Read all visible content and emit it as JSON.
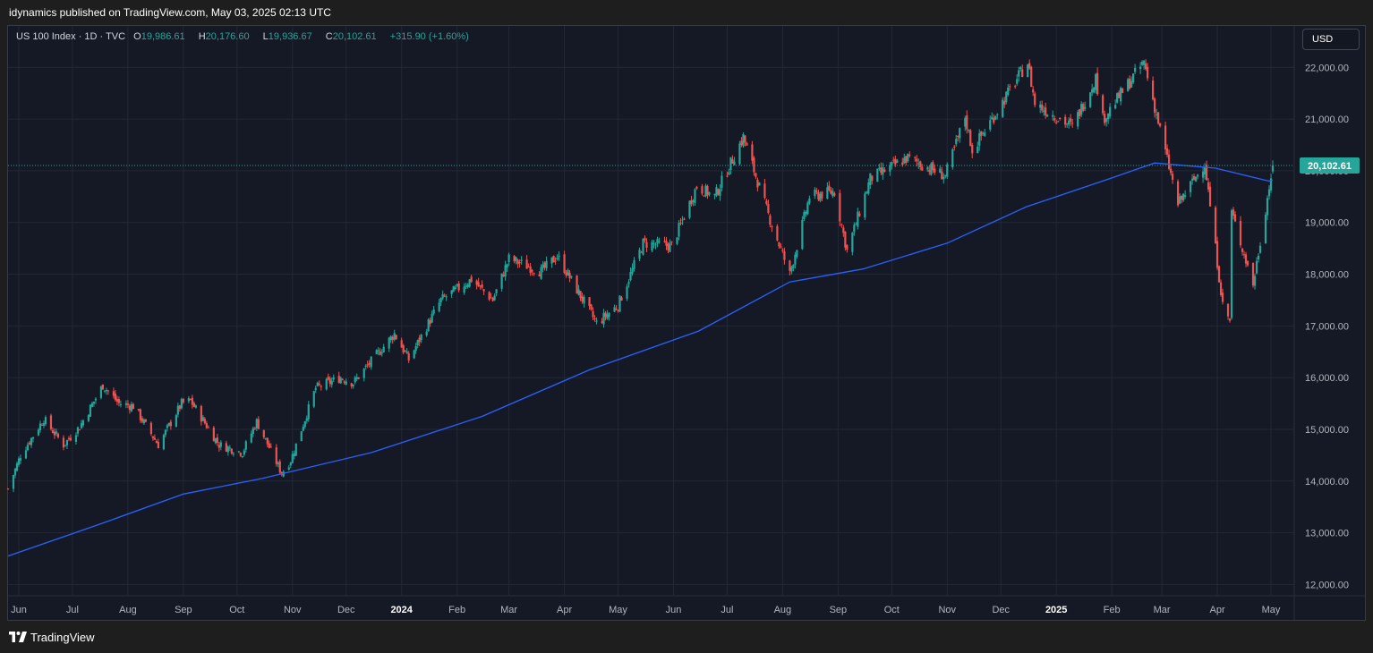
{
  "header": {
    "published_line": "idynamics published on TradingView.com, May 03, 2025 02:13 UTC"
  },
  "legend": {
    "symbol": "US 100 Index · 1D · TVC",
    "open_key": "O",
    "open": "19,986.61",
    "high_key": "H",
    "high": "20,176.60",
    "low_key": "L",
    "low": "19,936.67",
    "close_key": "C",
    "close": "20,102.61",
    "change": "+315.90 (+1.60%)"
  },
  "currency_button": {
    "label": "USD"
  },
  "footer": {
    "brand": "TradingView"
  },
  "colors": {
    "background": "#151925",
    "grid": "#232836",
    "up": "#26a69a",
    "down": "#ef5350",
    "moving_average": "#2962ff",
    "price_label_bg": "#26a69a",
    "axis_text": "#b2b5be"
  },
  "chart_data": {
    "type": "candlestick",
    "symbol": "US 100 Index",
    "interval": "1D",
    "last_price": 20102.61,
    "last_price_label": "20,102.61",
    "y_ticks": [
      "12,000.00",
      "13,000.00",
      "14,000.00",
      "15,000.00",
      "16,000.00",
      "17,000.00",
      "18,000.00",
      "19,000.00",
      "20,000.00",
      "21,000.00",
      "22,000.00"
    ],
    "ylim": [
      11800,
      22800
    ],
    "xlim": [
      "2023-05-26",
      "2025-05-14"
    ],
    "x_ticks": [
      {
        "label": "Jun",
        "date": "2023-06-01",
        "bold": false
      },
      {
        "label": "Jul",
        "date": "2023-07-01",
        "bold": false
      },
      {
        "label": "Aug",
        "date": "2023-08-01",
        "bold": false
      },
      {
        "label": "Sep",
        "date": "2023-09-01",
        "bold": false
      },
      {
        "label": "Oct",
        "date": "2023-10-01",
        "bold": false
      },
      {
        "label": "Nov",
        "date": "2023-11-01",
        "bold": false
      },
      {
        "label": "Dec",
        "date": "2023-12-01",
        "bold": false
      },
      {
        "label": "2024",
        "date": "2024-01-01",
        "bold": true
      },
      {
        "label": "Feb",
        "date": "2024-02-01",
        "bold": false
      },
      {
        "label": "Mar",
        "date": "2024-03-01",
        "bold": false
      },
      {
        "label": "Apr",
        "date": "2024-04-01",
        "bold": false
      },
      {
        "label": "May",
        "date": "2024-05-01",
        "bold": false
      },
      {
        "label": "Jun",
        "date": "2024-06-01",
        "bold": false
      },
      {
        "label": "Jul",
        "date": "2024-07-01",
        "bold": false
      },
      {
        "label": "Aug",
        "date": "2024-08-01",
        "bold": false
      },
      {
        "label": "Sep",
        "date": "2024-09-01",
        "bold": false
      },
      {
        "label": "Oct",
        "date": "2024-10-01",
        "bold": false
      },
      {
        "label": "Nov",
        "date": "2024-11-01",
        "bold": false
      },
      {
        "label": "Dec",
        "date": "2024-12-01",
        "bold": false
      },
      {
        "label": "2025",
        "date": "2025-01-01",
        "bold": true
      },
      {
        "label": "Feb",
        "date": "2025-02-01",
        "bold": false
      },
      {
        "label": "Mar",
        "date": "2025-03-01",
        "bold": false
      },
      {
        "label": "Apr",
        "date": "2025-04-01",
        "bold": false
      },
      {
        "label": "May",
        "date": "2025-05-01",
        "bold": false
      }
    ],
    "price_path": [
      [
        "2023-05-26",
        13850
      ],
      [
        "2023-06-02",
        14500
      ],
      [
        "2023-06-15",
        15200
      ],
      [
        "2023-06-26",
        14700
      ],
      [
        "2023-07-05",
        15050
      ],
      [
        "2023-07-18",
        15850
      ],
      [
        "2023-07-27",
        15500
      ],
      [
        "2023-08-04",
        15450
      ],
      [
        "2023-08-18",
        14700
      ],
      [
        "2023-08-31",
        15500
      ],
      [
        "2023-09-05",
        15550
      ],
      [
        "2023-09-21",
        14700
      ],
      [
        "2023-10-04",
        14550
      ],
      [
        "2023-10-12",
        15150
      ],
      [
        "2023-10-26",
        14150
      ],
      [
        "2023-10-31",
        14400
      ],
      [
        "2023-11-14",
        15800
      ],
      [
        "2023-11-28",
        16000
      ],
      [
        "2023-12-05",
        15900
      ],
      [
        "2023-12-28",
        16850
      ],
      [
        "2024-01-05",
        16350
      ],
      [
        "2024-01-23",
        17500
      ],
      [
        "2024-02-09",
        17900
      ],
      [
        "2024-02-21",
        17500
      ],
      [
        "2024-03-01",
        18300
      ],
      [
        "2024-03-19",
        18050
      ],
      [
        "2024-03-28",
        18350
      ],
      [
        "2024-04-19",
        17050
      ],
      [
        "2024-05-01",
        17400
      ],
      [
        "2024-05-15",
        18600
      ],
      [
        "2024-05-31",
        18550
      ],
      [
        "2024-06-14",
        19700
      ],
      [
        "2024-06-24",
        19500
      ],
      [
        "2024-07-10",
        20650
      ],
      [
        "2024-07-24",
        19150
      ],
      [
        "2024-08-05",
        18000
      ],
      [
        "2024-08-16",
        19500
      ],
      [
        "2024-08-30",
        19600
      ],
      [
        "2024-09-06",
        18450
      ],
      [
        "2024-09-19",
        19850
      ],
      [
        "2024-10-10",
        20250
      ],
      [
        "2024-10-31",
        19900
      ],
      [
        "2024-11-11",
        21050
      ],
      [
        "2024-11-15",
        20400
      ],
      [
        "2024-12-16",
        22100
      ],
      [
        "2024-12-20",
        21300
      ],
      [
        "2025-01-10",
        20850
      ],
      [
        "2025-01-23",
        21800
      ],
      [
        "2025-01-27",
        21000
      ],
      [
        "2025-02-19",
        22100
      ],
      [
        "2025-03-10",
        19350
      ],
      [
        "2025-03-25",
        20150
      ],
      [
        "2025-04-04",
        17400
      ],
      [
        "2025-04-08",
        17100
      ],
      [
        "2025-04-09",
        19200
      ],
      [
        "2025-04-21",
        17800
      ],
      [
        "2025-05-02",
        20102.61
      ]
    ],
    "moving_average": [
      [
        "2023-05-26",
        12550
      ],
      [
        "2023-07-15",
        13150
      ],
      [
        "2023-09-01",
        13750
      ],
      [
        "2023-10-15",
        14050
      ],
      [
        "2023-12-15",
        14550
      ],
      [
        "2024-02-15",
        15250
      ],
      [
        "2024-04-15",
        16150
      ],
      [
        "2024-06-15",
        16900
      ],
      [
        "2024-08-05",
        17850
      ],
      [
        "2024-09-15",
        18100
      ],
      [
        "2024-11-01",
        18600
      ],
      [
        "2024-12-15",
        19300
      ],
      [
        "2025-01-31",
        19850
      ],
      [
        "2025-02-25",
        20150
      ],
      [
        "2025-03-31",
        20050
      ],
      [
        "2025-04-30",
        19800
      ],
      [
        "2025-05-02",
        19820
      ]
    ]
  }
}
